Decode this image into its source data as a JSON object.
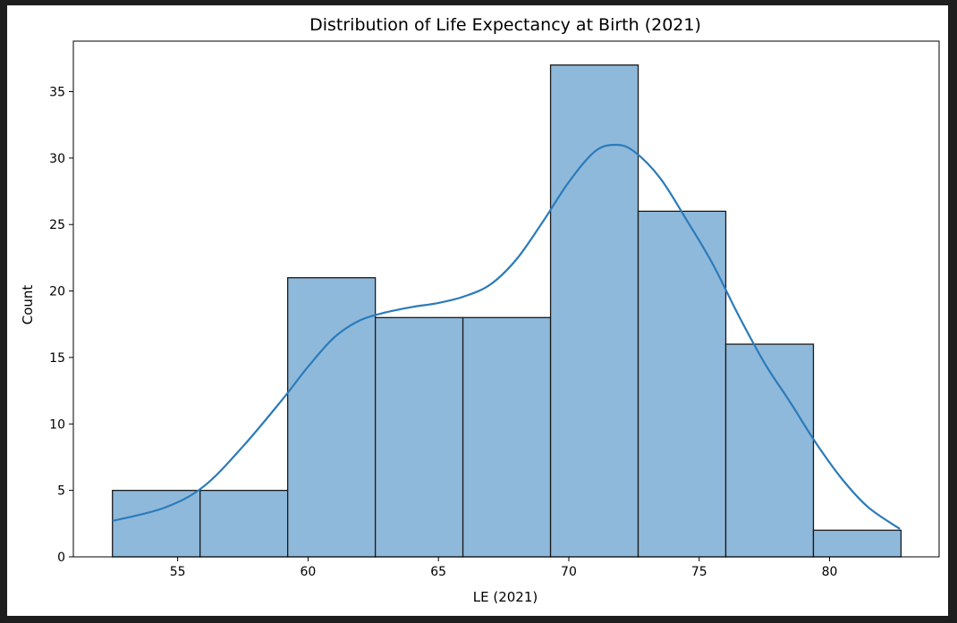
{
  "chart_data": {
    "type": "bar",
    "subtype": "histogram-with-kde",
    "title": "Distribution of Life Expectancy at Birth (2021)",
    "xlabel": "LE (2021)",
    "ylabel": "Count",
    "xlim": [
      51.0,
      84.2
    ],
    "ylim": [
      0,
      38.8
    ],
    "xticks": [
      55,
      60,
      65,
      70,
      75,
      80
    ],
    "yticks": [
      0,
      5,
      10,
      15,
      20,
      25,
      30,
      35
    ],
    "bin_edges": [
      52.5,
      55.86,
      59.22,
      62.58,
      65.94,
      69.3,
      72.66,
      76.02,
      79.38,
      82.74
    ],
    "counts": [
      5,
      5,
      21,
      18,
      18,
      37,
      26,
      16,
      2
    ],
    "kde": {
      "x": [
        52.5,
        54.5,
        56.0,
        57.5,
        59.0,
        60.0,
        61.0,
        62.0,
        63.0,
        64.0,
        65.0,
        66.0,
        67.0,
        68.0,
        69.0,
        70.0,
        71.0,
        71.8,
        72.5,
        73.5,
        74.5,
        75.5,
        76.5,
        77.5,
        78.5,
        79.5,
        80.5,
        81.5,
        82.7
      ],
      "y": [
        2.7,
        3.7,
        5.3,
        8.3,
        11.8,
        14.3,
        16.5,
        17.8,
        18.4,
        18.8,
        19.1,
        19.6,
        20.5,
        22.4,
        25.2,
        28.2,
        30.5,
        31.0,
        30.5,
        28.5,
        25.4,
        22.1,
        18.2,
        14.6,
        11.6,
        8.5,
        5.8,
        3.7,
        2.1
      ]
    },
    "grid": false,
    "colors": {
      "bar_fill": "#8fb9db",
      "bar_edge": "#1a1a1a",
      "kde_line": "#2b7bba",
      "axis": "#000000"
    }
  }
}
